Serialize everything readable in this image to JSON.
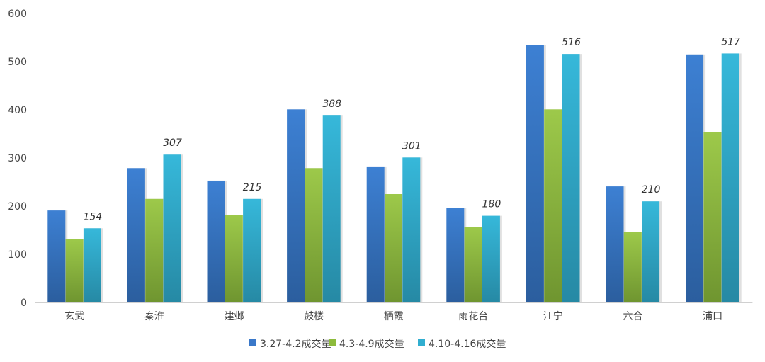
{
  "chart_data": {
    "type": "bar",
    "title": "",
    "xlabel": "",
    "ylabel": "",
    "ylim": [
      0,
      600
    ],
    "yticks": [
      "0",
      "100",
      "200",
      "300",
      "400",
      "500",
      "600"
    ],
    "categories": [
      "玄武",
      "秦淮",
      "建邺",
      "鼓楼",
      "栖霞",
      "雨花台",
      "江宁",
      "六合",
      "浦口"
    ],
    "series": [
      {
        "name": "3.27-4.2成交量",
        "color": "#3a78c9",
        "values": [
          191,
          279,
          253,
          401,
          281,
          196,
          534,
          241,
          515
        ],
        "labeled": false
      },
      {
        "name": "4.3-4.9成交量",
        "color": "#8dbb3c",
        "values": [
          131,
          215,
          181,
          279,
          225,
          157,
          401,
          146,
          353
        ],
        "labeled": false
      },
      {
        "name": "4.10-4.16成交量",
        "color": "#31aed0",
        "values": [
          154,
          307,
          215,
          388,
          301,
          180,
          516,
          210,
          517
        ],
        "labeled": true
      }
    ],
    "legend_position": "bottom",
    "grid": false
  }
}
